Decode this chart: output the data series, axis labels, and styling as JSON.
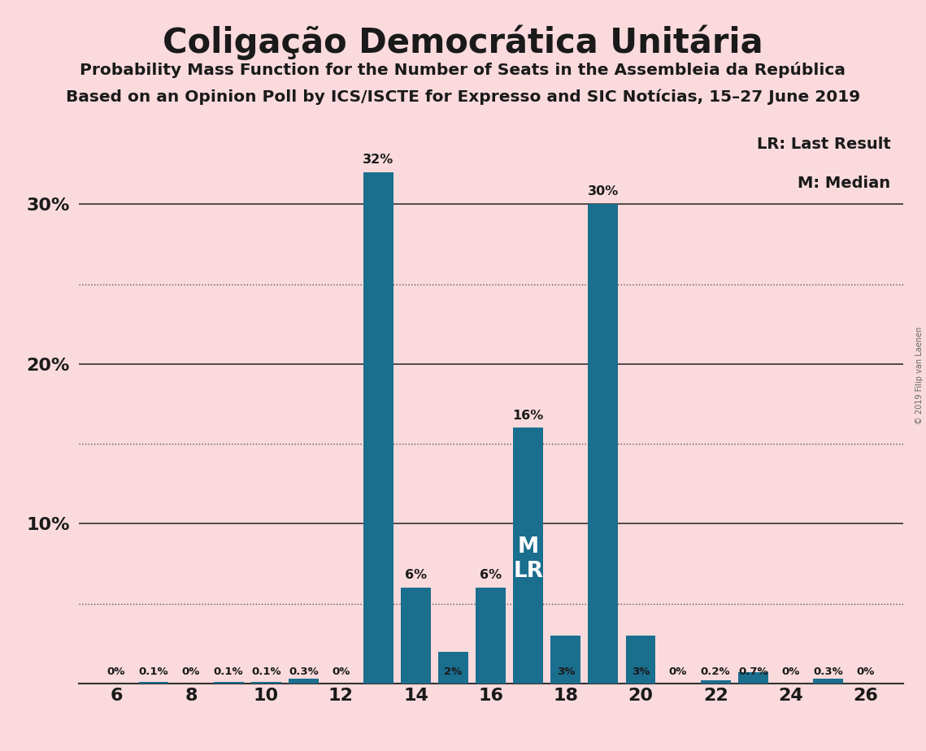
{
  "title": "Coligação Democrática Unitária",
  "subtitle1": "Probability Mass Function for the Number of Seats in the Assembleia da República",
  "subtitle2": "Based on an Opinion Poll by ICS/ISCTE for Expresso and SIC Notícias, 15–27 June 2019",
  "copyright": "© 2019 Filip van Laenen",
  "legend_lr": "LR: Last Result",
  "legend_m": "M: Median",
  "background_color": "#fadadd",
  "bar_color": "#1a6e8e",
  "seats": [
    6,
    7,
    8,
    9,
    10,
    11,
    12,
    13,
    14,
    15,
    16,
    17,
    18,
    19,
    20,
    21,
    22,
    23,
    24,
    25,
    26
  ],
  "probabilities": [
    0.0,
    0.001,
    0.0,
    0.001,
    0.001,
    0.003,
    0.0,
    0.32,
    0.06,
    0.02,
    0.06,
    0.16,
    0.03,
    0.3,
    0.03,
    0.0,
    0.002,
    0.007,
    0.0,
    0.003,
    0.0
  ],
  "labels": [
    "0%",
    "0.1%",
    "0%",
    "0.1%",
    "0.1%",
    "0.3%",
    "0%",
    "32%",
    "6%",
    "2%",
    "6%",
    "16%",
    "3%",
    "30%",
    "3%",
    "0%",
    "0.2%",
    "0.7%",
    "0%",
    "0.3%",
    "0%"
  ],
  "median_seat": 17,
  "last_result_seat": 17,
  "xlim": [
    5,
    27
  ],
  "ylim": [
    0,
    0.355
  ],
  "yticks": [
    0.0,
    0.1,
    0.2,
    0.3
  ],
  "ytick_labels": [
    "",
    "10%",
    "20%",
    "30%"
  ],
  "xticks": [
    6,
    8,
    10,
    12,
    14,
    16,
    18,
    20,
    22,
    24,
    26
  ]
}
